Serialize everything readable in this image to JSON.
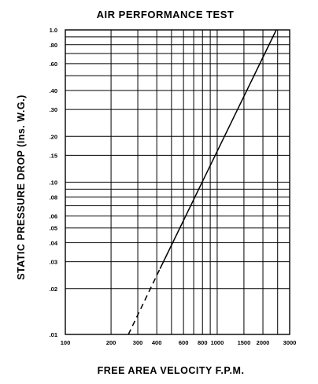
{
  "chart_data": {
    "type": "line",
    "title": "AIR PERFORMANCE TEST",
    "xlabel": "FREE AREA VELOCITY F.P.M.",
    "ylabel": "STATIC PRESSURE DROP (Ins. W.G.)",
    "xscale": "log",
    "yscale": "log",
    "xlim": [
      100,
      3000
    ],
    "ylim": [
      0.01,
      1.0
    ],
    "grid": true,
    "x_ticks": [
      100,
      200,
      300,
      400,
      600,
      800,
      1000,
      1500,
      2000,
      3000
    ],
    "x_tick_labels": [
      "100",
      "200",
      "300",
      "400",
      "600",
      "800",
      "1000",
      "1500",
      "2000",
      "3000"
    ],
    "x_grid_values": [
      200,
      300,
      400,
      500,
      600,
      700,
      800,
      900,
      1000,
      1500,
      2000,
      2500
    ],
    "y_ticks": [
      0.01,
      0.02,
      0.03,
      0.04,
      0.05,
      0.06,
      0.08,
      0.1,
      0.15,
      0.2,
      0.3,
      0.4,
      0.6,
      0.8,
      1.0
    ],
    "y_tick_labels": [
      ".01",
      ".02",
      ".03",
      ".04",
      ".05",
      ".06",
      ".08",
      ".10",
      ".15",
      ".20",
      ".30",
      ".40",
      ".60",
      ".80",
      "1.0"
    ],
    "y_grid_values": [
      0.02,
      0.03,
      0.04,
      0.05,
      0.06,
      0.07,
      0.08,
      0.09,
      0.1,
      0.15,
      0.2,
      0.3,
      0.4,
      0.5,
      0.6,
      0.7,
      0.8,
      0.9
    ],
    "series": [
      {
        "style": "dashed",
        "points": [
          [
            260,
            0.01
          ],
          [
            420,
            0.027
          ]
        ]
      },
      {
        "style": "solid",
        "points": [
          [
            420,
            0.027
          ],
          [
            2450,
            1.0
          ]
        ]
      }
    ]
  }
}
